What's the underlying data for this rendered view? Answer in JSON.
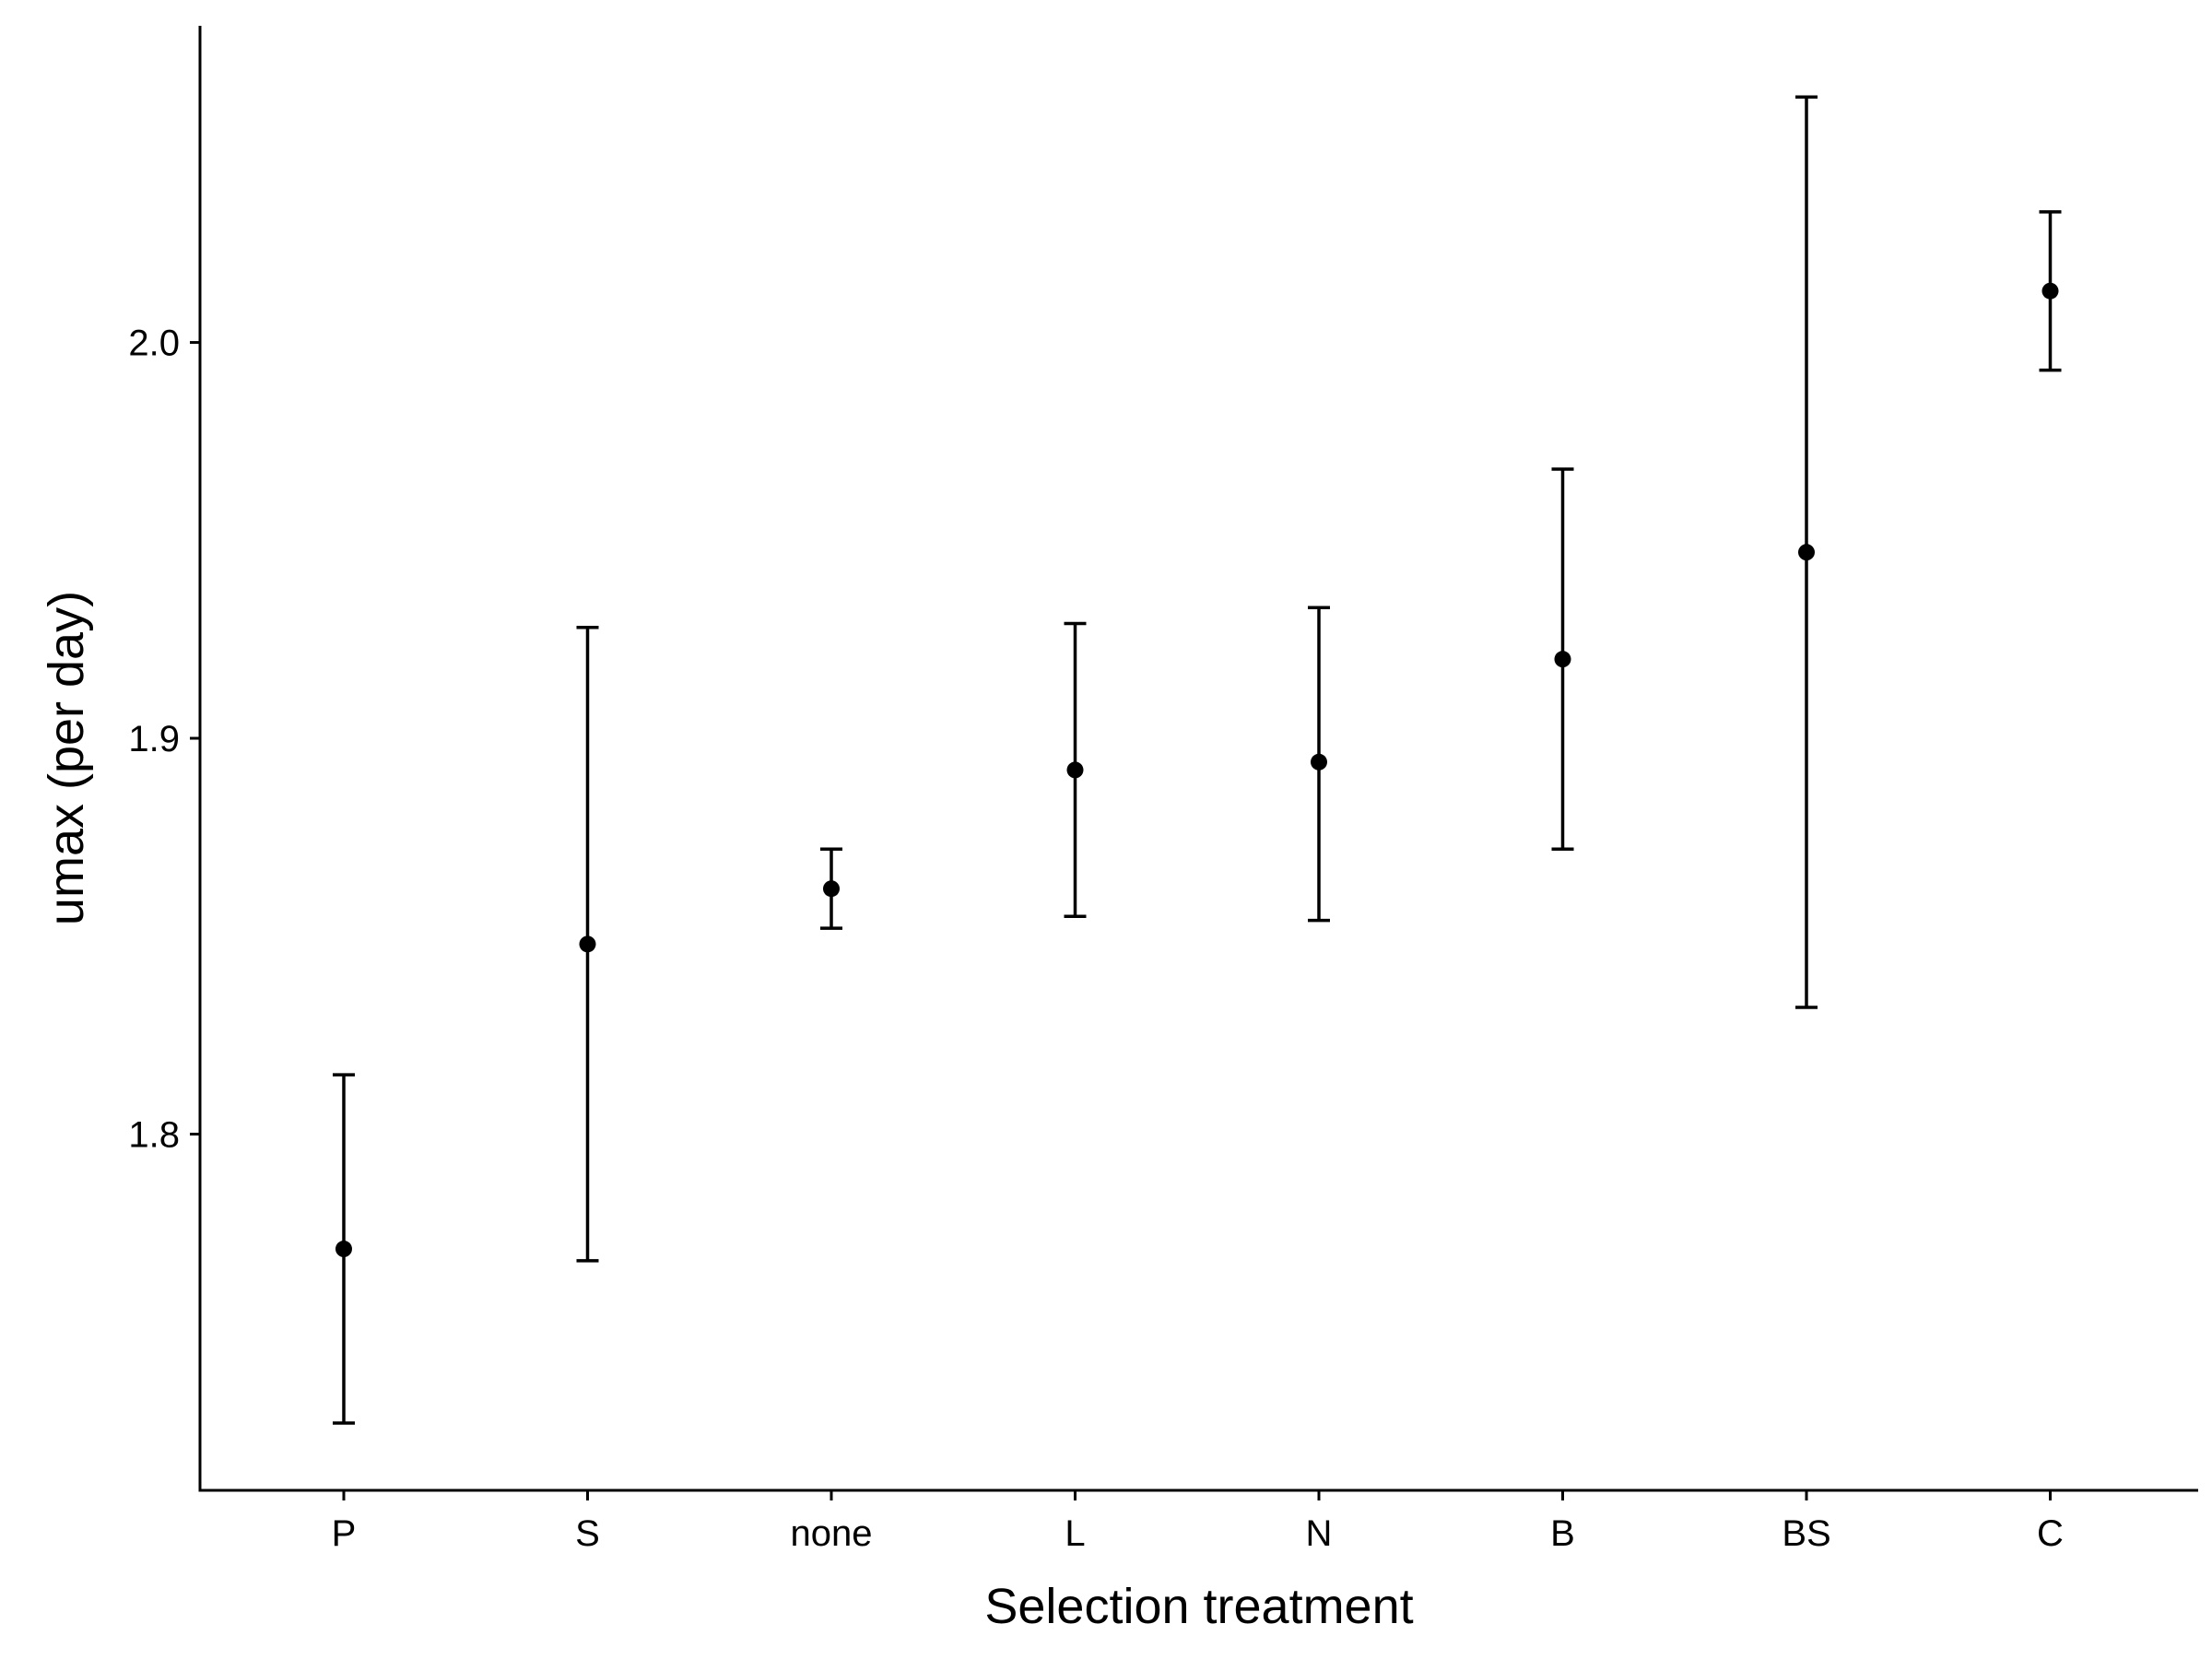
{
  "chart_data": {
    "type": "scatter",
    "title": "",
    "xlabel": "Selection treatment",
    "ylabel": "umax (per day)",
    "ylim": [
      1.71,
      2.08
    ],
    "yticks": [
      1.8,
      1.9,
      2.0
    ],
    "yticklabels": [
      "1.8",
      "1.9",
      "2.0"
    ],
    "grid": false,
    "legend": "none",
    "categories": [
      "P",
      "S",
      "none",
      "L",
      "N",
      "B",
      "BS",
      "C"
    ],
    "values": [
      1.771,
      1.848,
      1.862,
      1.892,
      1.894,
      1.92,
      1.947,
      2.013
    ],
    "lower": [
      1.727,
      1.768,
      1.852,
      1.855,
      1.854,
      1.872,
      1.832,
      1.993
    ],
    "upper": [
      1.815,
      1.928,
      1.872,
      1.929,
      1.933,
      1.968,
      2.062,
      2.033
    ]
  }
}
